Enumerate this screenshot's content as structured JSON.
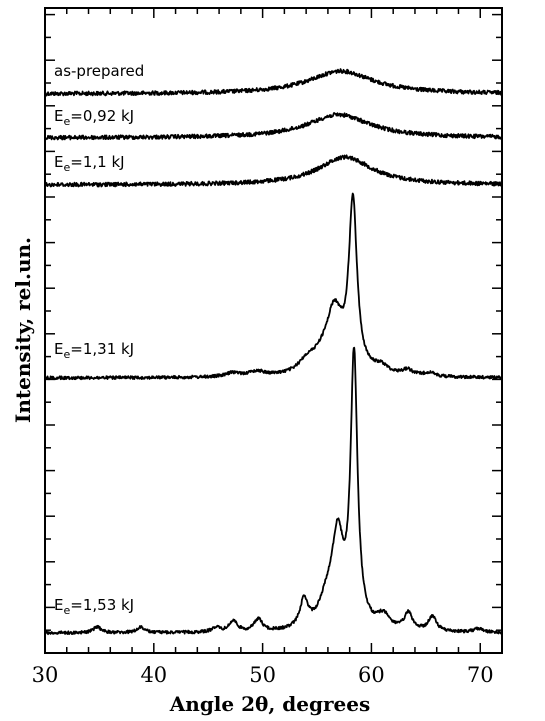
{
  "chart_data": {
    "type": "line",
    "title": "",
    "xlabel": "Angle 2θ, degrees",
    "ylabel": "Intensity, rel.un.",
    "xlim": [
      30,
      72
    ],
    "xticks": [
      30,
      40,
      50,
      60,
      70
    ],
    "xtick_labels": [
      "30",
      "40",
      "50",
      "60",
      "70"
    ],
    "y_tick_labels_shown": false,
    "grid": false,
    "legend": "inline labels left of each curve",
    "stroke_color": "#000000",
    "series": [
      {
        "name": "as-prepared",
        "label_main": "as-prepared",
        "label_sub": "",
        "label_rest": "",
        "baseline": 0.0,
        "peaks": [
          {
            "x": 57.2,
            "h": 0.085,
            "w": 3.6
          }
        ]
      },
      {
        "name": "Ee=0,92 kJ",
        "label_main": "E",
        "label_sub": "e",
        "label_rest": "=0,92 kJ",
        "baseline": 0.0,
        "peaks": [
          {
            "x": 57.0,
            "h": 0.088,
            "w": 3.5
          }
        ]
      },
      {
        "name": "Ee=1,1 kJ",
        "label_main": "E",
        "label_sub": "e",
        "label_rest": "=1,1 kJ",
        "baseline": 0.0,
        "peaks": [
          {
            "x": 57.6,
            "h": 0.1,
            "w": 3.0
          }
        ]
      },
      {
        "name": "Ee=1,31 kJ",
        "label_main": "E",
        "label_sub": "e",
        "label_rest": "=1,31 kJ",
        "baseline": 0.0,
        "peaks": [
          {
            "x": 58.3,
            "h": 0.35,
            "w": 0.45
          },
          {
            "x": 56.6,
            "h": 0.12,
            "w": 0.9
          },
          {
            "x": 55.4,
            "h": 0.03,
            "w": 1.4
          },
          {
            "x": 54.0,
            "h": 0.018,
            "w": 0.8
          },
          {
            "x": 49.5,
            "h": 0.01,
            "w": 0.9
          },
          {
            "x": 47.3,
            "h": 0.008,
            "w": 0.8
          },
          {
            "x": 60.9,
            "h": 0.016,
            "w": 0.8
          },
          {
            "x": 63.3,
            "h": 0.012,
            "w": 0.6
          },
          {
            "x": 65.3,
            "h": 0.008,
            "w": 0.6
          }
        ]
      },
      {
        "name": "Ee=1,53 kJ",
        "label_main": "E",
        "label_sub": "e",
        "label_rest": "=1,53 kJ",
        "baseline": 0.0,
        "peaks": [
          {
            "x": 58.4,
            "h": 0.44,
            "w": 0.38
          },
          {
            "x": 56.9,
            "h": 0.14,
            "w": 0.65
          },
          {
            "x": 55.9,
            "h": 0.04,
            "w": 0.9
          },
          {
            "x": 53.8,
            "h": 0.045,
            "w": 0.45
          },
          {
            "x": 49.6,
            "h": 0.02,
            "w": 0.45
          },
          {
            "x": 47.3,
            "h": 0.018,
            "w": 0.45
          },
          {
            "x": 45.7,
            "h": 0.008,
            "w": 0.4
          },
          {
            "x": 38.8,
            "h": 0.009,
            "w": 0.4
          },
          {
            "x": 34.8,
            "h": 0.01,
            "w": 0.4
          },
          {
            "x": 61.1,
            "h": 0.022,
            "w": 0.7
          },
          {
            "x": 63.4,
            "h": 0.028,
            "w": 0.45
          },
          {
            "x": 65.6,
            "h": 0.024,
            "w": 0.45
          },
          {
            "x": 69.8,
            "h": 0.006,
            "w": 0.5
          }
        ]
      }
    ]
  }
}
